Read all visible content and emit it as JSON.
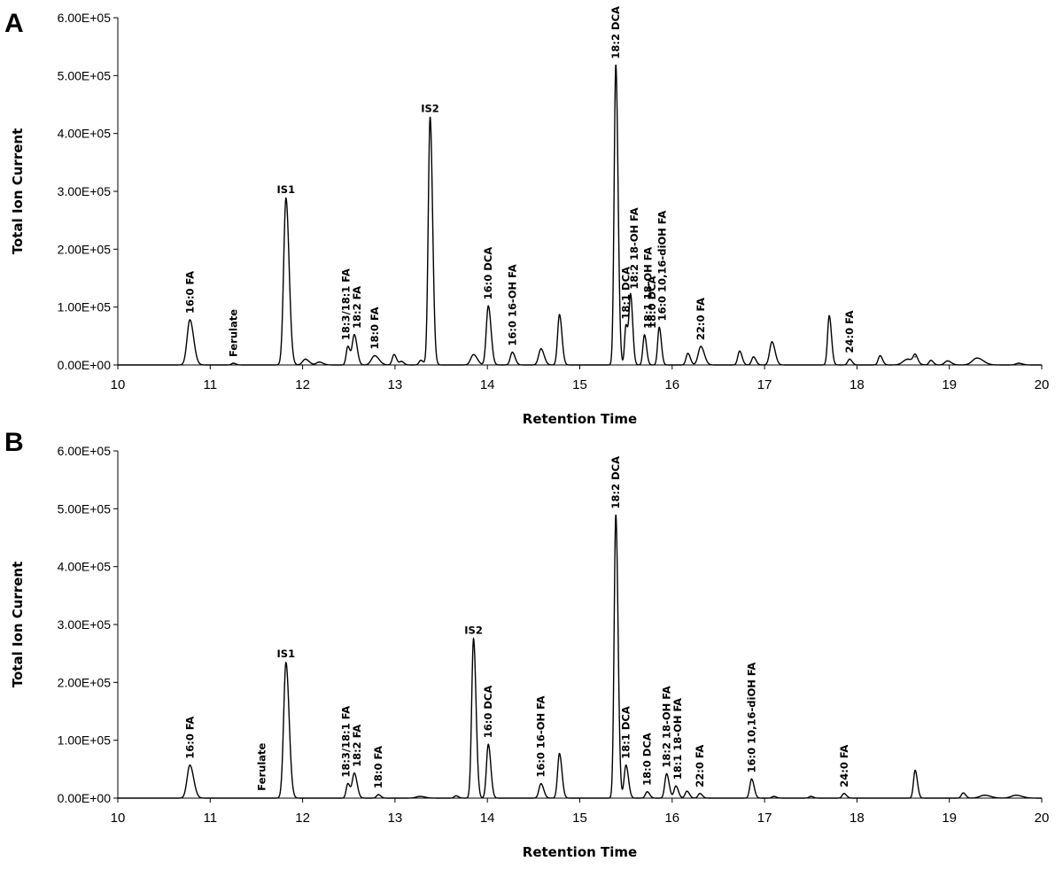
{
  "chart_data": [
    {
      "type": "line",
      "panel": "A",
      "xlabel": "Retention Time",
      "ylabel": "Total Ion Current",
      "xlim": [
        10,
        20
      ],
      "ylim": [
        0,
        600000
      ],
      "xticks": [
        "10",
        "11",
        "12",
        "13",
        "14",
        "15",
        "16",
        "17",
        "18",
        "19",
        "20"
      ],
      "yticks": [
        "0.00E+00",
        "1.00E+05",
        "2.00E+05",
        "3.00E+05",
        "4.00E+05",
        "5.00E+05",
        "6.00E+05"
      ],
      "grid": false,
      "peaks": [
        {
          "x": 10.78,
          "y": 78000,
          "w": 0.03
        },
        {
          "x": 11.25,
          "y": 3000,
          "w": 0.02
        },
        {
          "x": 11.82,
          "y": 288000,
          "w": 0.025
        },
        {
          "x": 12.03,
          "y": 10000,
          "w": 0.03
        },
        {
          "x": 12.18,
          "y": 5000,
          "w": 0.03
        },
        {
          "x": 12.49,
          "y": 32000,
          "w": 0.018
        },
        {
          "x": 12.56,
          "y": 52000,
          "w": 0.022
        },
        {
          "x": 12.78,
          "y": 16000,
          "w": 0.035
        },
        {
          "x": 12.99,
          "y": 18000,
          "w": 0.02
        },
        {
          "x": 13.07,
          "y": 6000,
          "w": 0.02
        },
        {
          "x": 13.28,
          "y": 8000,
          "w": 0.02
        },
        {
          "x": 13.38,
          "y": 428000,
          "w": 0.02
        },
        {
          "x": 13.85,
          "y": 18000,
          "w": 0.03
        },
        {
          "x": 14.01,
          "y": 102000,
          "w": 0.022
        },
        {
          "x": 14.27,
          "y": 22000,
          "w": 0.022
        },
        {
          "x": 14.58,
          "y": 28000,
          "w": 0.025
        },
        {
          "x": 14.78,
          "y": 87000,
          "w": 0.02
        },
        {
          "x": 15.39,
          "y": 518000,
          "w": 0.018
        },
        {
          "x": 15.5,
          "y": 68000,
          "w": 0.015
        },
        {
          "x": 15.55,
          "y": 120000,
          "w": 0.017
        },
        {
          "x": 15.7,
          "y": 52000,
          "w": 0.017
        },
        {
          "x": 15.86,
          "y": 65000,
          "w": 0.017
        },
        {
          "x": 16.17,
          "y": 20000,
          "w": 0.02
        },
        {
          "x": 16.31,
          "y": 32000,
          "w": 0.028
        },
        {
          "x": 16.73,
          "y": 24000,
          "w": 0.02
        },
        {
          "x": 16.88,
          "y": 14000,
          "w": 0.02
        },
        {
          "x": 17.08,
          "y": 40000,
          "w": 0.025
        },
        {
          "x": 17.7,
          "y": 85000,
          "w": 0.018
        },
        {
          "x": 17.92,
          "y": 10000,
          "w": 0.02
        },
        {
          "x": 18.25,
          "y": 16000,
          "w": 0.02
        },
        {
          "x": 18.55,
          "y": 10000,
          "w": 0.05
        },
        {
          "x": 18.63,
          "y": 14000,
          "w": 0.02
        },
        {
          "x": 18.8,
          "y": 8000,
          "w": 0.02
        },
        {
          "x": 18.98,
          "y": 7000,
          "w": 0.03
        },
        {
          "x": 19.3,
          "y": 12000,
          "w": 0.05
        },
        {
          "x": 19.75,
          "y": 3000,
          "w": 0.03
        }
      ],
      "labels": [
        {
          "text": "16:0 FA",
          "x": 10.78,
          "y": 78000
        },
        {
          "text": "Ferulate",
          "x": 11.25,
          "y": 3000
        },
        {
          "text": "IS1",
          "x": 11.82,
          "y": 288000,
          "horizontal": true
        },
        {
          "text": "18:3/18:1 FA",
          "x": 12.47,
          "y": 32000
        },
        {
          "text": "18:2 FA",
          "x": 12.59,
          "y": 52000
        },
        {
          "text": "18:0 FA",
          "x": 12.78,
          "y": 16000
        },
        {
          "text": "IS2",
          "x": 13.38,
          "y": 428000,
          "horizontal": true
        },
        {
          "text": "16:0 DCA",
          "x": 14.01,
          "y": 102000
        },
        {
          "text": "16:0 16-OH FA",
          "x": 14.27,
          "y": 22000
        },
        {
          "text": "18:2 DCA",
          "x": 15.39,
          "y": 518000
        },
        {
          "text": "18:1 DCA",
          "x": 15.5,
          "y": 68000
        },
        {
          "text": "18:2 18-OH FA",
          "x": 15.59,
          "y": 120000
        },
        {
          "text": "18:1 18-OH FA",
          "x": 15.74,
          "y": 52000
        },
        {
          "text": "18:0 DCA",
          "x": 15.78,
          "y": 52000
        },
        {
          "text": "16:0 10,16-diOH FA",
          "x": 15.89,
          "y": 65000
        },
        {
          "text": "22:0 FA",
          "x": 16.31,
          "y": 32000
        },
        {
          "text": "24:0 FA",
          "x": 17.92,
          "y": 10000
        }
      ]
    },
    {
      "type": "line",
      "panel": "B",
      "xlabel": "Retention Time",
      "ylabel": "Total Ion Current",
      "xlim": [
        10,
        20
      ],
      "ylim": [
        0,
        600000
      ],
      "xticks": [
        "10",
        "11",
        "12",
        "13",
        "14",
        "15",
        "16",
        "17",
        "18",
        "19",
        "20"
      ],
      "yticks": [
        "0.00E+00",
        "1.00E+05",
        "2.00E+05",
        "3.00E+05",
        "4.00E+05",
        "5.00E+05",
        "6.00E+05"
      ],
      "grid": false,
      "peaks": [
        {
          "x": 10.78,
          "y": 57000,
          "w": 0.03
        },
        {
          "x": 11.82,
          "y": 234000,
          "w": 0.025
        },
        {
          "x": 12.49,
          "y": 25000,
          "w": 0.018
        },
        {
          "x": 12.56,
          "y": 43000,
          "w": 0.022
        },
        {
          "x": 12.82,
          "y": 6000,
          "w": 0.02
        },
        {
          "x": 13.27,
          "y": 3000,
          "w": 0.04
        },
        {
          "x": 13.66,
          "y": 4000,
          "w": 0.02
        },
        {
          "x": 13.85,
          "y": 275000,
          "w": 0.02
        },
        {
          "x": 14.01,
          "y": 93000,
          "w": 0.02
        },
        {
          "x": 14.58,
          "y": 25000,
          "w": 0.022
        },
        {
          "x": 14.78,
          "y": 77000,
          "w": 0.02
        },
        {
          "x": 15.39,
          "y": 489000,
          "w": 0.018
        },
        {
          "x": 15.5,
          "y": 57000,
          "w": 0.02
        },
        {
          "x": 15.73,
          "y": 11000,
          "w": 0.02
        },
        {
          "x": 15.94,
          "y": 42000,
          "w": 0.02
        },
        {
          "x": 16.04,
          "y": 21000,
          "w": 0.02
        },
        {
          "x": 16.16,
          "y": 12000,
          "w": 0.02
        },
        {
          "x": 16.3,
          "y": 8000,
          "w": 0.02
        },
        {
          "x": 16.86,
          "y": 33000,
          "w": 0.02
        },
        {
          "x": 17.1,
          "y": 3000,
          "w": 0.02
        },
        {
          "x": 17.5,
          "y": 3000,
          "w": 0.02
        },
        {
          "x": 17.86,
          "y": 8000,
          "w": 0.02
        },
        {
          "x": 18.63,
          "y": 48000,
          "w": 0.018
        },
        {
          "x": 19.15,
          "y": 9000,
          "w": 0.02
        },
        {
          "x": 19.38,
          "y": 5000,
          "w": 0.05
        },
        {
          "x": 19.72,
          "y": 5000,
          "w": 0.05
        }
      ],
      "labels": [
        {
          "text": "16:0 FA",
          "x": 10.78,
          "y": 57000
        },
        {
          "text": "Ferulate",
          "x": 11.56,
          "y": 2000
        },
        {
          "text": "IS1",
          "x": 11.82,
          "y": 234000,
          "horizontal": true
        },
        {
          "text": "18:3/18:1 FA",
          "x": 12.47,
          "y": 25000
        },
        {
          "text": "18:2 FA",
          "x": 12.59,
          "y": 43000
        },
        {
          "text": "18:0 FA",
          "x": 12.82,
          "y": 6000
        },
        {
          "text": "IS2",
          "x": 13.85,
          "y": 275000,
          "horizontal": true
        },
        {
          "text": "16:0 DCA",
          "x": 14.01,
          "y": 93000
        },
        {
          "text": "16:0 16-OH FA",
          "x": 14.58,
          "y": 25000
        },
        {
          "text": "18:2 DCA",
          "x": 15.39,
          "y": 489000
        },
        {
          "text": "18:1 DCA",
          "x": 15.5,
          "y": 57000
        },
        {
          "text": "18:0 DCA",
          "x": 15.73,
          "y": 11000
        },
        {
          "text": "18:2 18-OH FA",
          "x": 15.94,
          "y": 42000
        },
        {
          "text": "18:1 18-OH FA",
          "x": 16.06,
          "y": 21000
        },
        {
          "text": "22:0 FA",
          "x": 16.3,
          "y": 8000
        },
        {
          "text": "16:0 10,16-diOH FA",
          "x": 16.86,
          "y": 33000
        },
        {
          "text": "24:0 FA",
          "x": 17.86,
          "y": 8000
        }
      ]
    }
  ]
}
